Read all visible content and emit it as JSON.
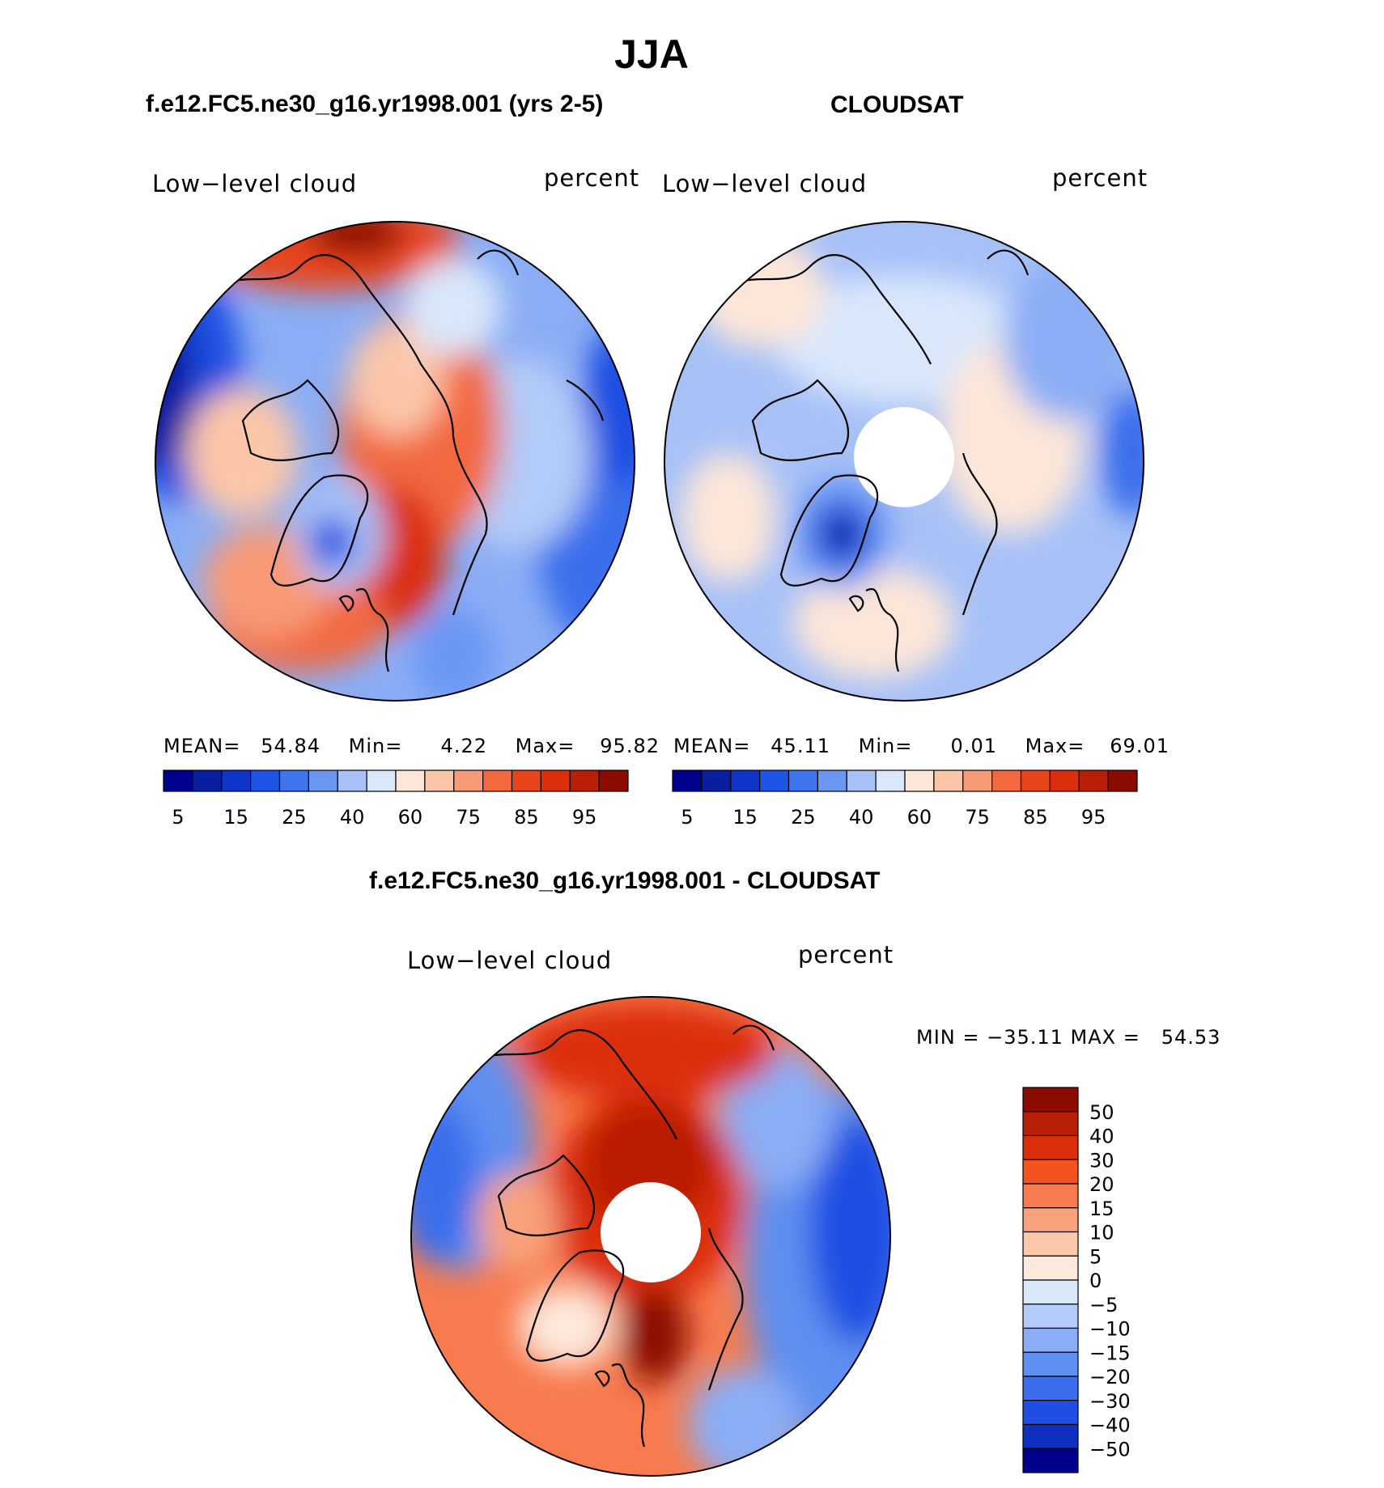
{
  "title": "JJA",
  "panels": [
    {
      "id": "model",
      "subtitle": "f.e12.FC5.ne30_g16.yr1998.001 (yrs 2-5)",
      "variable": "Low−level cloud",
      "units": "percent",
      "stats": {
        "mean_label": "MEAN=",
        "mean": "54.84",
        "min_label": "Min=",
        "min": "4.22",
        "max_label": "Max=",
        "max": "95.82"
      }
    },
    {
      "id": "obs",
      "subtitle": "CLOUDSAT",
      "variable": "Low−level cloud",
      "units": "percent",
      "stats": {
        "mean_label": "MEAN=",
        "mean": "45.11",
        "min_label": "Min=",
        "min": "0.01",
        "max_label": "Max=",
        "max": "69.01"
      }
    },
    {
      "id": "diff",
      "subtitle": "f.e12.FC5.ne30_g16.yr1998.001 - CLOUDSAT",
      "variable": "Low−level cloud",
      "units": "percent",
      "stats_text": "MIN = −35.11 MAX =   54.53"
    }
  ],
  "chart_data": [
    {
      "type": "heatmap",
      "projection": "north-polar-stereographic",
      "title": "f.e12.FC5.ne30_g16.yr1998.001 (yrs 2-5)",
      "variable": "Low-level cloud",
      "units": "percent",
      "mean": 54.84,
      "min": 4.22,
      "max": 95.82,
      "colorbar_ticks": [
        "5",
        "15",
        "25",
        "40",
        "60",
        "75",
        "85",
        "95"
      ],
      "colorbar_colors": [
        "#00008f",
        "#0a1fa0",
        "#0f35c8",
        "#1f55e6",
        "#3f74ef",
        "#6b97f4",
        "#a7c1f7",
        "#d9e7fb",
        "#fde6d8",
        "#fbc6a8",
        "#f89a76",
        "#f2693f",
        "#e8441b",
        "#db2f0c",
        "#b91f06",
        "#8a0c00"
      ]
    },
    {
      "type": "heatmap",
      "projection": "north-polar-stereographic",
      "title": "CLOUDSAT",
      "variable": "Low-level cloud",
      "units": "percent",
      "mean": 45.11,
      "min": 0.01,
      "max": 69.01,
      "colorbar_ticks": [
        "5",
        "15",
        "25",
        "40",
        "60",
        "75",
        "85",
        "95"
      ],
      "colorbar_colors": [
        "#00008f",
        "#0a1fa0",
        "#0f35c8",
        "#1f55e6",
        "#3f74ef",
        "#6b97f4",
        "#a7c1f7",
        "#d9e7fb",
        "#fde6d8",
        "#fbc6a8",
        "#f89a76",
        "#f2693f",
        "#e8441b",
        "#db2f0c",
        "#b91f06",
        "#8a0c00"
      ]
    },
    {
      "type": "heatmap",
      "projection": "north-polar-stereographic",
      "title": "f.e12.FC5.ne30_g16.yr1998.001 - CLOUDSAT",
      "variable": "Low-level cloud",
      "units": "percent",
      "min": -35.11,
      "max": 54.53,
      "colorbar_ticks": [
        "50",
        "40",
        "30",
        "20",
        "15",
        "10",
        "5",
        "0",
        "−5",
        "−10",
        "−15",
        "−20",
        "−30",
        "−40",
        "−50"
      ],
      "colorbar_colors": [
        "#8a0c00",
        "#b91f06",
        "#db2f0c",
        "#f2531f",
        "#f77b4e",
        "#f9a27c",
        "#fbc8aa",
        "#fde8dc",
        "#d9e7fb",
        "#b3cbf8",
        "#8aadf5",
        "#5f8ff0",
        "#3a6eec",
        "#1f4fe2",
        "#0f2fbe",
        "#00008a"
      ]
    }
  ]
}
